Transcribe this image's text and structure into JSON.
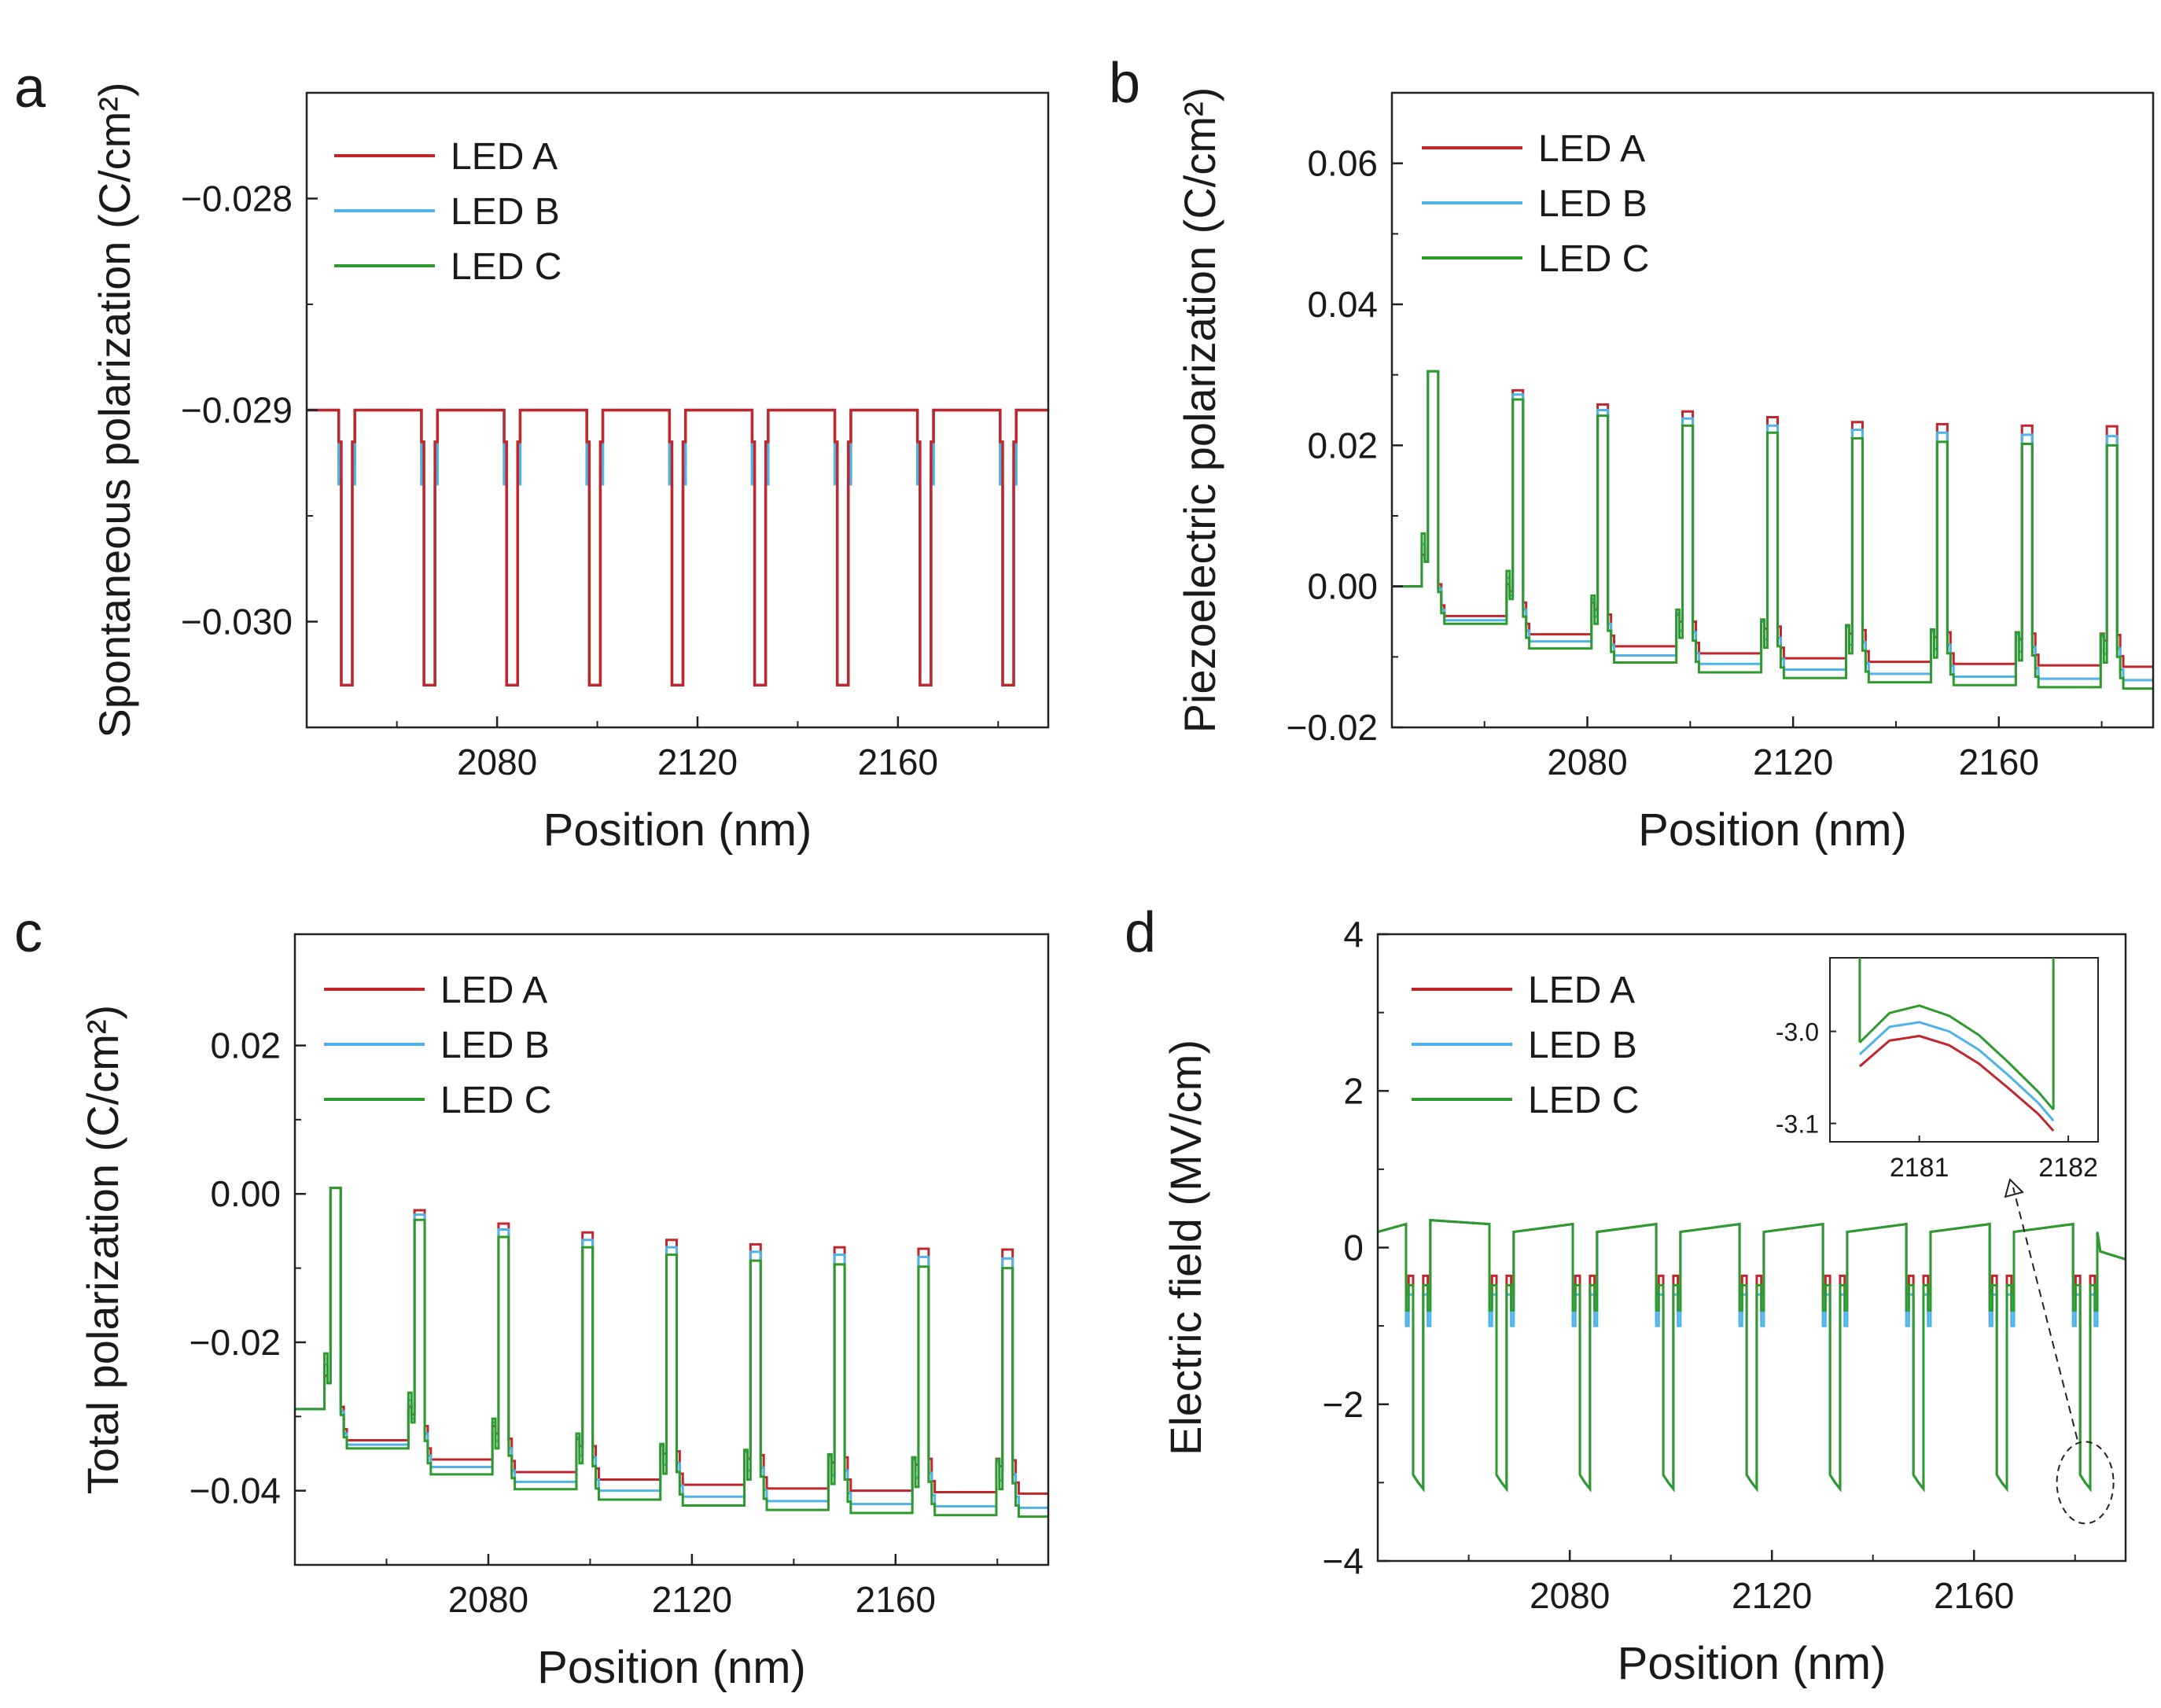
{
  "figure": {
    "labels": [
      "a",
      "b",
      "c",
      "d"
    ]
  },
  "colors": {
    "led_a": "#c0272d",
    "led_b": "#4fb3e8",
    "led_c": "#2e9a2e",
    "axis": "#222222"
  },
  "chart_data": [
    {
      "type": "line",
      "panel": "a",
      "title": "",
      "xlabel": "Position (nm)",
      "ylabel": "Spontaneous polarization (C/cm²)",
      "xlim": [
        2042,
        2190
      ],
      "ylim": [
        -0.0305,
        -0.0275
      ],
      "x_ticks": [
        "2080",
        "2120",
        "2160"
      ],
      "x_tick_values": [
        2080,
        2120,
        2160
      ],
      "y_ticks": [
        "−0.028",
        "−0.029",
        "−0.030"
      ],
      "y_tick_values": [
        -0.028,
        -0.029,
        -0.03
      ],
      "legend": [
        "LED A",
        "LED B",
        "LED C"
      ],
      "legend_position": "top-left",
      "wells": [
        2050,
        2066.5,
        2083,
        2099.5,
        2116,
        2132.5,
        2149,
        2165.5,
        2182
      ],
      "series": [
        {
          "name": "LED A",
          "baseline": -0.029,
          "dip": -0.0303,
          "shoulder": -0.02915
        },
        {
          "name": "LED B",
          "baseline": -0.029,
          "dip": -0.0303,
          "shoulder": -0.02935
        },
        {
          "name": "LED C",
          "baseline": -0.029,
          "dip": -0.0303,
          "shoulder": -0.02925
        }
      ]
    },
    {
      "type": "line",
      "panel": "b",
      "title": "",
      "xlabel": "Position (nm)",
      "ylabel": "Piezoelectric polarization (C/cm²)",
      "xlim": [
        2042,
        2190
      ],
      "ylim": [
        -0.02,
        0.07
      ],
      "x_ticks": [
        "2080",
        "2120",
        "2160"
      ],
      "x_tick_values": [
        2080,
        2120,
        2160
      ],
      "y_ticks": [
        "0.06",
        "0.04",
        "0.02",
        "0.00",
        "−0.02"
      ],
      "y_tick_values": [
        0.06,
        0.04,
        0.02,
        0.0,
        -0.02
      ],
      "legend": [
        "LED A",
        "LED B",
        "LED C"
      ],
      "legend_position": "top-left",
      "start_value": 0.0,
      "wells": [
        2050,
        2066.5,
        2083,
        2099.5,
        2116,
        2132.5,
        2149,
        2165.5,
        2182
      ],
      "series": [
        {
          "name": "LED A",
          "spikes": [
            0.0305,
            0.0278,
            0.0258,
            0.0248,
            0.024,
            0.0233,
            0.023,
            0.0228,
            0.0227
          ],
          "floors": [
            -0.0042,
            -0.0068,
            -0.0085,
            -0.0095,
            -0.0102,
            -0.0107,
            -0.011,
            -0.0112,
            -0.0114
          ]
        },
        {
          "name": "LED B",
          "spikes": [
            0.0305,
            0.0272,
            0.025,
            0.0238,
            0.0228,
            0.0222,
            0.0218,
            0.0215,
            0.0213
          ],
          "floors": [
            -0.0048,
            -0.0078,
            -0.0098,
            -0.011,
            -0.0118,
            -0.0124,
            -0.0128,
            -0.0131,
            -0.0133
          ]
        },
        {
          "name": "LED C",
          "spikes": [
            0.0305,
            0.0265,
            0.0242,
            0.0228,
            0.0218,
            0.021,
            0.0205,
            0.0202,
            0.02
          ],
          "floors": [
            -0.0053,
            -0.0088,
            -0.0108,
            -0.0122,
            -0.013,
            -0.0136,
            -0.014,
            -0.0143,
            -0.0145
          ]
        }
      ]
    },
    {
      "type": "line",
      "panel": "c",
      "title": "",
      "xlabel": "Position (nm)",
      "ylabel": "Total polarization (C/cm²)",
      "xlim": [
        2042,
        2190
      ],
      "ylim": [
        -0.05,
        0.035
      ],
      "x_ticks": [
        "2080",
        "2120",
        "2160"
      ],
      "x_tick_values": [
        2080,
        2120,
        2160
      ],
      "y_ticks": [
        "0.02",
        "0.00",
        "−0.02",
        "−0.04"
      ],
      "y_tick_values": [
        0.02,
        0.0,
        -0.02,
        -0.04
      ],
      "legend": [
        "LED A",
        "LED B",
        "LED C"
      ],
      "legend_position": "top-left",
      "start_value": -0.029,
      "wells": [
        2050,
        2066.5,
        2083,
        2099.5,
        2116,
        2132.5,
        2149,
        2165.5,
        2182
      ],
      "series": [
        {
          "name": "LED A",
          "spikes": [
            0.0008,
            -0.0022,
            -0.004,
            -0.0052,
            -0.0062,
            -0.0068,
            -0.0072,
            -0.0074,
            -0.0075
          ],
          "floors": [
            -0.0332,
            -0.0358,
            -0.0375,
            -0.0385,
            -0.0392,
            -0.0397,
            -0.04,
            -0.0402,
            -0.0404
          ]
        },
        {
          "name": "LED B",
          "spikes": [
            0.0008,
            -0.0028,
            -0.0048,
            -0.0062,
            -0.0072,
            -0.0078,
            -0.0082,
            -0.0085,
            -0.0087
          ],
          "floors": [
            -0.0338,
            -0.0368,
            -0.0388,
            -0.04,
            -0.0408,
            -0.0414,
            -0.0418,
            -0.0421,
            -0.0423
          ]
        },
        {
          "name": "LED C",
          "spikes": [
            0.0008,
            -0.0035,
            -0.0058,
            -0.0072,
            -0.0082,
            -0.009,
            -0.0095,
            -0.0098,
            -0.01
          ],
          "floors": [
            -0.0343,
            -0.0378,
            -0.0398,
            -0.0412,
            -0.042,
            -0.0426,
            -0.043,
            -0.0433,
            -0.0435
          ]
        }
      ]
    },
    {
      "type": "line",
      "panel": "d",
      "title": "",
      "xlabel": "Position (nm)",
      "ylabel": "Electric field (MV/cm)",
      "xlim": [
        2042,
        2190
      ],
      "ylim": [
        -4,
        4
      ],
      "x_ticks": [
        "2080",
        "2120",
        "2160"
      ],
      "x_tick_values": [
        2080,
        2120,
        2160
      ],
      "y_ticks": [
        "4",
        "2",
        "0",
        "−2",
        "−4"
      ],
      "y_tick_values": [
        4,
        2,
        0,
        -2,
        -4
      ],
      "legend": [
        "LED A",
        "LED B",
        "LED C"
      ],
      "legend_position": "top-left",
      "wells": [
        2050,
        2066.5,
        2083,
        2099.5,
        2116,
        2132.5,
        2149,
        2165.5,
        2182
      ],
      "barrier_field": [
        0.2,
        0.3
      ],
      "well_field": -3.0,
      "end_field": -0.15,
      "series": [
        {
          "name": "LED A",
          "interface_dip": -0.6
        },
        {
          "name": "LED B",
          "interface_dip": -1.0
        },
        {
          "name": "LED C",
          "interface_dip": -0.8
        }
      ],
      "inset": {
        "xlim": [
          2180.4,
          2182.2
        ],
        "ylim": [
          -3.12,
          -2.92
        ],
        "x_ticks": [
          "2181",
          "2182"
        ],
        "x_tick_values": [
          2181,
          2182
        ],
        "y_ticks": [
          "-3.0",
          "-3.1"
        ],
        "y_tick_values": [
          -3.0,
          -3.1
        ],
        "x": [
          2180.6,
          2180.8,
          2181.0,
          2181.2,
          2181.4,
          2181.6,
          2181.8,
          2181.9
        ],
        "series": [
          {
            "name": "LED A",
            "values": [
              -3.038,
              -3.01,
              -3.005,
              -3.015,
              -3.035,
              -3.062,
              -3.09,
              -3.108
            ]
          },
          {
            "name": "LED B",
            "values": [
              -3.025,
              -2.995,
              -2.99,
              -3.0,
              -3.02,
              -3.048,
              -3.078,
              -3.097
            ]
          },
          {
            "name": "LED C",
            "values": [
              -3.012,
              -2.98,
              -2.972,
              -2.983,
              -3.004,
              -3.034,
              -3.066,
              -3.085
            ]
          }
        ]
      }
    }
  ]
}
